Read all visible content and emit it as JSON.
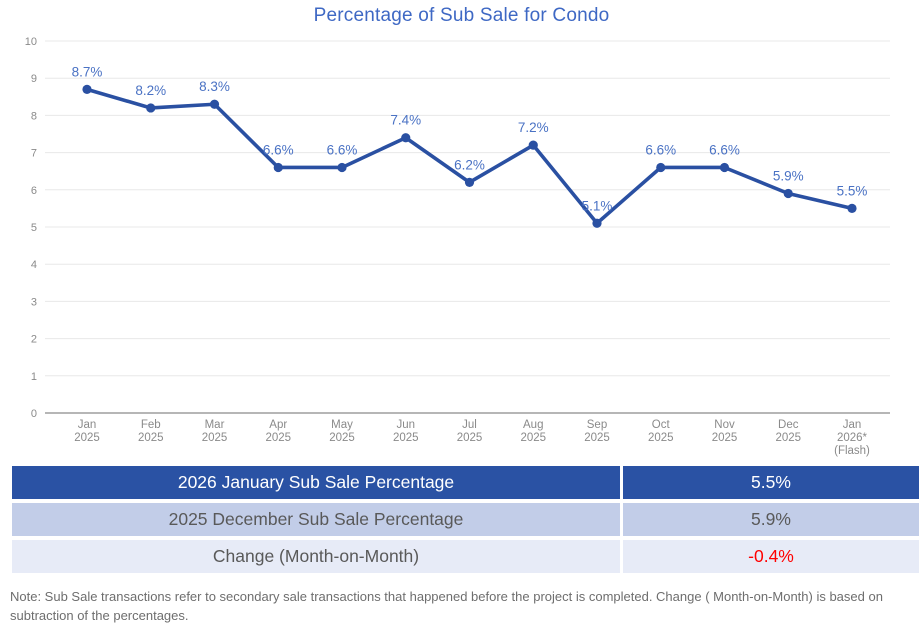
{
  "chart_data": {
    "type": "line",
    "title": "Percentage of Sub Sale for Condo",
    "categories": [
      [
        "Jan",
        "2025"
      ],
      [
        "Feb",
        "2025"
      ],
      [
        "Mar",
        "2025"
      ],
      [
        "Apr",
        "2025"
      ],
      [
        "May",
        "2025"
      ],
      [
        "Jun",
        "2025"
      ],
      [
        "Jul",
        "2025"
      ],
      [
        "Aug",
        "2025"
      ],
      [
        "Sep",
        "2025"
      ],
      [
        "Oct",
        "2025"
      ],
      [
        "Nov",
        "2025"
      ],
      [
        "Dec",
        "2025"
      ],
      [
        "Jan",
        "2026*",
        "(Flash)"
      ]
    ],
    "values": [
      8.7,
      8.2,
      8.3,
      6.6,
      6.6,
      7.4,
      6.2,
      7.2,
      5.1,
      6.6,
      6.6,
      5.9,
      5.5
    ],
    "point_labels": [
      "8.7%",
      "8.2%",
      "8.3%",
      "6.6%",
      "6.6%",
      "7.4%",
      "6.2%",
      "7.2%",
      "5.1%",
      "6.6%",
      "6.6%",
      "5.9%",
      "5.5%"
    ],
    "xlabel": "",
    "ylabel": "",
    "ylim": [
      0,
      10
    ],
    "ytick_step": 1,
    "grid": true,
    "legend": false
  },
  "table": {
    "rows": [
      {
        "label": "2026 January Sub Sale Percentage",
        "value": "5.5%"
      },
      {
        "label": "2025 December Sub Sale Percentage",
        "value": "5.9%"
      },
      {
        "label": "Change (Month-on-Month)",
        "value": "-0.4%"
      }
    ]
  },
  "note": "Note: Sub Sale transactions refer to secondary sale transactions that happened before the project is completed. Change ( Month-on-Month) is based on subtraction of the percentages.",
  "colors": {
    "title": "#3e68c4",
    "line": "#2a50a2",
    "point-label": "#4a72c4",
    "axis-text": "#8a8a8a",
    "grid": "#e8e8e8",
    "axis-line": "#9e9e9e",
    "row1-bg": "#2a52a4",
    "row1-text": "#ffffff",
    "row2-bg": "#c2cde8",
    "row3-bg": "#e7ebf7",
    "table-text": "#595959",
    "negative": "#ff0000",
    "note-text": "#6e6e6e"
  }
}
